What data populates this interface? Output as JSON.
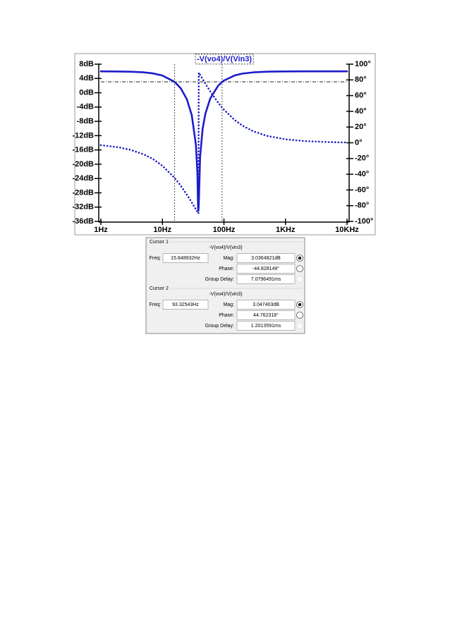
{
  "chart_data": {
    "type": "line",
    "title": "-V(vo4)/V(Vin3)",
    "xscale": "log",
    "x": [
      1,
      2,
      3,
      5,
      7,
      10,
      15.848932,
      20,
      25,
      30,
      35,
      37,
      38,
      38.5,
      39,
      41,
      45,
      50,
      60,
      80,
      93.32543,
      100,
      150,
      200,
      300,
      500,
      1000,
      2000,
      5000,
      10000
    ],
    "series": [
      {
        "color": "#1c1cc8",
        "style": "solid",
        "values": [
          5.99,
          5.95,
          5.89,
          5.71,
          5.42,
          4.82,
          3.0364821,
          1.18,
          -1.83,
          -6.27,
          -14.5,
          -22.2,
          -32.3,
          -33,
          -31.2,
          -17.9,
          -10.15,
          -5.82,
          -1.58,
          1.91,
          3.047403,
          3.41,
          4.86,
          5.36,
          5.71,
          5.9,
          5.97,
          5.99,
          6,
          6
        ]
      },
      {
        "color": "#1c1cc8",
        "style": "dotted",
        "axis": "y2",
        "values": [
          -3.0,
          -5.95,
          -8.9,
          -14.8,
          -20.6,
          -29.2,
          -44.828149,
          -54.9,
          -66.1,
          -75.9,
          -84.6,
          -87.8,
          -89.3,
          -89.9,
          89.2,
          86.4,
          81.0,
          75.1,
          65.3,
          51.4,
          44.762318,
          42.1,
          28.8,
          21.8,
          14.6,
          8.8,
          4.4,
          2.2,
          0.9,
          0.4
        ]
      }
    ],
    "cursors": [
      {
        "x": 15.848932,
        "y": 3.0364821
      },
      {
        "x": 93.32543,
        "y": 3.047403
      }
    ],
    "xlim": [
      1,
      10000
    ],
    "xticks": [
      {
        "value": 1,
        "label": "1Hz"
      },
      {
        "value": 10,
        "label": "10Hz"
      },
      {
        "value": 100,
        "label": "100Hz"
      },
      {
        "value": 1000,
        "label": "1KHz"
      },
      {
        "value": 10000,
        "label": "10KHz"
      }
    ],
    "ylim": [
      -36,
      8
    ],
    "yticks": [
      {
        "value": 8,
        "label": "8dB"
      },
      {
        "value": 4,
        "label": "4dB"
      },
      {
        "value": 0,
        "label": "0dB"
      },
      {
        "value": -4,
        "label": "-4dB"
      },
      {
        "value": -8,
        "label": "-8dB"
      },
      {
        "value": -12,
        "label": "-12dB"
      },
      {
        "value": -16,
        "label": "-16dB"
      },
      {
        "value": -20,
        "label": "-20dB"
      },
      {
        "value": -24,
        "label": "-24dB"
      },
      {
        "value": -28,
        "label": "-28dB"
      },
      {
        "value": -32,
        "label": "-32dB"
      },
      {
        "value": -36,
        "label": "-36dB"
      }
    ],
    "y2lim": [
      -100,
      100
    ],
    "y2ticks": [
      {
        "value": 100,
        "label": "100°"
      },
      {
        "value": 80,
        "label": "80°"
      },
      {
        "value": 60,
        "label": "60°"
      },
      {
        "value": 40,
        "label": "40°"
      },
      {
        "value": 20,
        "label": "20°"
      },
      {
        "value": 0,
        "label": "0°"
      },
      {
        "value": -20,
        "label": "-20°"
      },
      {
        "value": -40,
        "label": "-40°"
      },
      {
        "value": -60,
        "label": "-60°"
      },
      {
        "value": -80,
        "label": "-80°"
      },
      {
        "value": -100,
        "label": "-100°"
      }
    ]
  },
  "cursor_panel": {
    "cursors": [
      {
        "title": "Cursor 1",
        "trace": "-V(vo4)/V(vin3)",
        "freq_label": "Freq:",
        "freq": "15.848932Hz",
        "mag_label": "Mag:",
        "mag": "3.0364821dB",
        "phase_label": "Phase:",
        "phase": "-44.828149°",
        "group_delay_label": "Group Delay:",
        "group_delay": "7.0796491ms"
      },
      {
        "title": "Cursor 2",
        "trace": "-V(vo4)/V(vin3)",
        "freq_label": "Freq:",
        "freq": "93.32543Hz",
        "mag_label": "Mag:",
        "mag": "3.047403dB",
        "phase_label": "Phase:",
        "phase": "44.762318°",
        "group_delay_label": "Group Delay:",
        "group_delay": "1.2013591ms"
      }
    ]
  }
}
